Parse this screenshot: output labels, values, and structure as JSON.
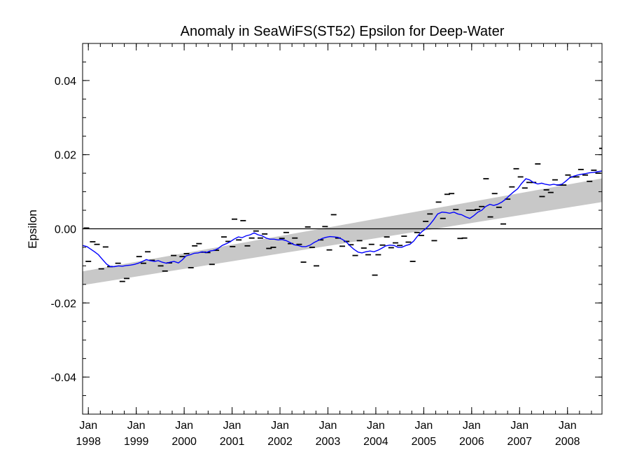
{
  "chart_data": {
    "type": "line",
    "title": "Anomaly in SeaWiFS(ST52) Epsilon for Deep-Water",
    "xlabel": "",
    "ylabel": "Epsilon",
    "xlim": [
      1997.88,
      2008.72
    ],
    "ylim": [
      -0.05,
      0.05
    ],
    "y_ticks": [
      {
        "value": -0.04,
        "label": "-0.04"
      },
      {
        "value": -0.02,
        "label": "-0.02"
      },
      {
        "value": 0.0,
        "label": "0.00"
      },
      {
        "value": 0.02,
        "label": "0.02"
      },
      {
        "value": 0.04,
        "label": "0.04"
      }
    ],
    "x_ticks": [
      {
        "value": 1998,
        "month": "Jan",
        "year": "1998"
      },
      {
        "value": 1999,
        "month": "Jan",
        "year": "1999"
      },
      {
        "value": 2000,
        "month": "Jan",
        "year": "2000"
      },
      {
        "value": 2001,
        "month": "Jan",
        "year": "2001"
      },
      {
        "value": 2002,
        "month": "Jan",
        "year": "2002"
      },
      {
        "value": 2003,
        "month": "Jan",
        "year": "2003"
      },
      {
        "value": 2004,
        "month": "Jan",
        "year": "2004"
      },
      {
        "value": 2005,
        "month": "Jan",
        "year": "2005"
      },
      {
        "value": 2006,
        "month": "Jan",
        "year": "2006"
      },
      {
        "value": 2007,
        "month": "Jan",
        "year": "2007"
      },
      {
        "value": 2008,
        "month": "Jan",
        "year": "2008"
      }
    ],
    "zero_line": 0.0,
    "trend_band": {
      "color": "#c8c8c8",
      "lower": [
        [
          1997.88,
          -0.0152
        ],
        [
          2008.72,
          0.0072
        ]
      ],
      "upper": [
        [
          1997.88,
          -0.0115
        ],
        [
          2008.72,
          0.0136
        ]
      ]
    },
    "smoothed_series": {
      "color": "#0000ff",
      "points": [
        [
          1997.88,
          -0.0045
        ],
        [
          1997.97,
          -0.0048
        ],
        [
          1998.05,
          -0.0055
        ],
        [
          1998.13,
          -0.0062
        ],
        [
          1998.21,
          -0.007
        ],
        [
          1998.29,
          -0.0082
        ],
        [
          1998.38,
          -0.0095
        ],
        [
          1998.46,
          -0.0102
        ],
        [
          1998.54,
          -0.0102
        ],
        [
          1998.63,
          -0.01
        ],
        [
          1998.71,
          -0.0101
        ],
        [
          1998.79,
          -0.0099
        ],
        [
          1998.88,
          -0.0098
        ],
        [
          1998.96,
          -0.0096
        ],
        [
          1999.04,
          -0.0093
        ],
        [
          1999.13,
          -0.0088
        ],
        [
          1999.21,
          -0.0083
        ],
        [
          1999.29,
          -0.0086
        ],
        [
          1999.38,
          -0.0088
        ],
        [
          1999.46,
          -0.0086
        ],
        [
          1999.54,
          -0.009
        ],
        [
          1999.63,
          -0.0093
        ],
        [
          1999.71,
          -0.009
        ],
        [
          1999.79,
          -0.0088
        ],
        [
          1999.88,
          -0.0092
        ],
        [
          1999.96,
          -0.0084
        ],
        [
          2000.04,
          -0.0073
        ],
        [
          2000.13,
          -0.007
        ],
        [
          2000.21,
          -0.0066
        ],
        [
          2000.29,
          -0.0065
        ],
        [
          2000.38,
          -0.0062
        ],
        [
          2000.46,
          -0.0064
        ],
        [
          2000.54,
          -0.006
        ],
        [
          2000.63,
          -0.0058
        ],
        [
          2000.71,
          -0.0053
        ],
        [
          2000.79,
          -0.0045
        ],
        [
          2000.88,
          -0.004
        ],
        [
          2000.96,
          -0.0035
        ],
        [
          2001.04,
          -0.0028
        ],
        [
          2001.13,
          -0.0022
        ],
        [
          2001.21,
          -0.0024
        ],
        [
          2001.29,
          -0.0019
        ],
        [
          2001.38,
          -0.0016
        ],
        [
          2001.46,
          -0.0011
        ],
        [
          2001.54,
          -0.0016
        ],
        [
          2001.63,
          -0.0019
        ],
        [
          2001.71,
          -0.0025
        ],
        [
          2001.79,
          -0.0028
        ],
        [
          2001.88,
          -0.0028
        ],
        [
          2001.96,
          -0.003
        ],
        [
          2002.04,
          -0.0029
        ],
        [
          2002.13,
          -0.0032
        ],
        [
          2002.21,
          -0.0037
        ],
        [
          2002.29,
          -0.0043
        ],
        [
          2002.38,
          -0.0045
        ],
        [
          2002.46,
          -0.0048
        ],
        [
          2002.54,
          -0.0048
        ],
        [
          2002.63,
          -0.0044
        ],
        [
          2002.71,
          -0.0037
        ],
        [
          2002.79,
          -0.0032
        ],
        [
          2002.88,
          -0.0026
        ],
        [
          2002.96,
          -0.0023
        ],
        [
          2003.04,
          -0.0021
        ],
        [
          2003.13,
          -0.0022
        ],
        [
          2003.21,
          -0.0023
        ],
        [
          2003.29,
          -0.0028
        ],
        [
          2003.38,
          -0.0035
        ],
        [
          2003.46,
          -0.0046
        ],
        [
          2003.54,
          -0.0055
        ],
        [
          2003.63,
          -0.0063
        ],
        [
          2003.71,
          -0.0065
        ],
        [
          2003.79,
          -0.0062
        ],
        [
          2003.88,
          -0.006
        ],
        [
          2003.96,
          -0.0062
        ],
        [
          2004.04,
          -0.0058
        ],
        [
          2004.13,
          -0.0052
        ],
        [
          2004.21,
          -0.0046
        ],
        [
          2004.29,
          -0.0044
        ],
        [
          2004.38,
          -0.0045
        ],
        [
          2004.46,
          -0.005
        ],
        [
          2004.54,
          -0.005
        ],
        [
          2004.63,
          -0.0045
        ],
        [
          2004.71,
          -0.0042
        ],
        [
          2004.79,
          -0.0033
        ],
        [
          2004.88,
          -0.0018
        ],
        [
          2004.96,
          -0.0008
        ],
        [
          2005.04,
          0.0
        ],
        [
          2005.13,
          0.0012
        ],
        [
          2005.21,
          0.0025
        ],
        [
          2005.29,
          0.004
        ],
        [
          2005.38,
          0.0045
        ],
        [
          2005.46,
          0.0044
        ],
        [
          2005.54,
          0.0042
        ],
        [
          2005.63,
          0.0045
        ],
        [
          2005.71,
          0.004
        ],
        [
          2005.79,
          0.0038
        ],
        [
          2005.88,
          0.0032
        ],
        [
          2005.96,
          0.0028
        ],
        [
          2006.04,
          0.0035
        ],
        [
          2006.13,
          0.0045
        ],
        [
          2006.21,
          0.005
        ],
        [
          2006.29,
          0.006
        ],
        [
          2006.38,
          0.0066
        ],
        [
          2006.46,
          0.0063
        ],
        [
          2006.54,
          0.0066
        ],
        [
          2006.63,
          0.0072
        ],
        [
          2006.71,
          0.008
        ],
        [
          2006.79,
          0.009
        ],
        [
          2006.88,
          0.01
        ],
        [
          2006.96,
          0.0108
        ],
        [
          2007.04,
          0.0122
        ],
        [
          2007.13,
          0.0135
        ],
        [
          2007.21,
          0.0132
        ],
        [
          2007.29,
          0.0125
        ],
        [
          2007.38,
          0.0121
        ],
        [
          2007.46,
          0.0123
        ],
        [
          2007.54,
          0.012
        ],
        [
          2007.63,
          0.0118
        ],
        [
          2007.71,
          0.012
        ],
        [
          2007.79,
          0.0118
        ],
        [
          2007.88,
          0.012
        ],
        [
          2007.96,
          0.0128
        ],
        [
          2008.04,
          0.0137
        ],
        [
          2008.13,
          0.0142
        ],
        [
          2008.21,
          0.0145
        ],
        [
          2008.29,
          0.0147
        ],
        [
          2008.38,
          0.0149
        ],
        [
          2008.46,
          0.0151
        ],
        [
          2008.54,
          0.0152
        ],
        [
          2008.63,
          0.0154
        ],
        [
          2008.72,
          0.0156
        ]
      ]
    },
    "scatter_series": {
      "marker": "dash",
      "color": "#000000",
      "points": [
        [
          1997.96,
          0.0002
        ],
        [
          1998.0,
          -0.0088
        ],
        [
          1998.09,
          -0.0035
        ],
        [
          1998.18,
          -0.0042
        ],
        [
          1998.27,
          -0.0108
        ],
        [
          1998.36,
          -0.0049
        ],
        [
          1998.45,
          -0.0102
        ],
        [
          1998.62,
          -0.0093
        ],
        [
          1998.71,
          -0.0142
        ],
        [
          1998.8,
          -0.0134
        ],
        [
          1999.06,
          -0.0075
        ],
        [
          1999.15,
          -0.0093
        ],
        [
          1999.24,
          -0.0062
        ],
        [
          1999.33,
          -0.0085
        ],
        [
          1999.51,
          -0.01
        ],
        [
          1999.6,
          -0.0114
        ],
        [
          1999.69,
          -0.0092
        ],
        [
          1999.78,
          -0.0072
        ],
        [
          1999.96,
          -0.0075
        ],
        [
          2000.05,
          -0.0067
        ],
        [
          2000.14,
          -0.0105
        ],
        [
          2000.22,
          -0.0046
        ],
        [
          2000.31,
          -0.004
        ],
        [
          2000.4,
          -0.0063
        ],
        [
          2000.49,
          -0.0064
        ],
        [
          2000.58,
          -0.0096
        ],
        [
          2000.67,
          -0.0058
        ],
        [
          2000.83,
          -0.0022
        ],
        [
          2000.92,
          -0.0034
        ],
        [
          2001.01,
          -0.0048
        ],
        [
          2001.05,
          0.0026
        ],
        [
          2001.14,
          -0.003
        ],
        [
          2001.23,
          0.0022
        ],
        [
          2001.32,
          -0.0046
        ],
        [
          2001.41,
          -0.0025
        ],
        [
          2001.5,
          -0.0006
        ],
        [
          2001.59,
          -0.0025
        ],
        [
          2001.68,
          -0.0014
        ],
        [
          2001.77,
          -0.0053
        ],
        [
          2001.86,
          -0.005
        ],
        [
          2002.04,
          -0.0026
        ],
        [
          2002.13,
          -0.001
        ],
        [
          2002.22,
          -0.004
        ],
        [
          2002.31,
          -0.0025
        ],
        [
          2002.4,
          -0.0042
        ],
        [
          2002.49,
          -0.009
        ],
        [
          2002.58,
          0.0005
        ],
        [
          2002.67,
          -0.005
        ],
        [
          2002.76,
          -0.01
        ],
        [
          2002.85,
          -0.003
        ],
        [
          2002.94,
          0.0006
        ],
        [
          2003.03,
          -0.0057
        ],
        [
          2003.12,
          0.0038
        ],
        [
          2003.21,
          -0.0025
        ],
        [
          2003.3,
          -0.0047
        ],
        [
          2003.39,
          -0.0034
        ],
        [
          2003.48,
          -0.0043
        ],
        [
          2003.57,
          -0.0072
        ],
        [
          2003.66,
          -0.0032
        ],
        [
          2003.75,
          -0.0052
        ],
        [
          2003.84,
          -0.007
        ],
        [
          2003.91,
          -0.0042
        ],
        [
          2003.98,
          -0.0125
        ],
        [
          2004.05,
          -0.007
        ],
        [
          2004.14,
          -0.0044
        ],
        [
          2004.23,
          -0.0022
        ],
        [
          2004.32,
          -0.0051
        ],
        [
          2004.41,
          -0.0038
        ],
        [
          2004.5,
          -0.0045
        ],
        [
          2004.59,
          -0.002
        ],
        [
          2004.68,
          -0.0036
        ],
        [
          2004.77,
          -0.0088
        ],
        [
          2004.86,
          -0.001
        ],
        [
          2004.95,
          -0.0018
        ],
        [
          2005.04,
          0.002
        ],
        [
          2005.13,
          0.004
        ],
        [
          2005.22,
          -0.0032
        ],
        [
          2005.31,
          0.0072
        ],
        [
          2005.4,
          0.0028
        ],
        [
          2005.49,
          0.0093
        ],
        [
          2005.58,
          0.0095
        ],
        [
          2005.67,
          0.0052
        ],
        [
          2005.76,
          -0.0026
        ],
        [
          2005.85,
          -0.0025
        ],
        [
          2005.94,
          0.005
        ],
        [
          2006.03,
          0.005
        ],
        [
          2006.12,
          0.0052
        ],
        [
          2006.21,
          0.006
        ],
        [
          2006.3,
          0.0135
        ],
        [
          2006.39,
          0.0032
        ],
        [
          2006.48,
          0.0095
        ],
        [
          2006.57,
          0.0058
        ],
        [
          2006.66,
          0.0013
        ],
        [
          2006.75,
          0.008
        ],
        [
          2006.84,
          0.0113
        ],
        [
          2006.93,
          0.0162
        ],
        [
          2007.02,
          0.014
        ],
        [
          2007.11,
          0.011
        ],
        [
          2007.2,
          0.0125
        ],
        [
          2007.29,
          0.0125
        ],
        [
          2007.38,
          0.0175
        ],
        [
          2007.47,
          0.0087
        ],
        [
          2007.56,
          0.0105
        ],
        [
          2007.65,
          0.0098
        ],
        [
          2007.74,
          0.0132
        ],
        [
          2007.83,
          0.0118
        ],
        [
          2007.92,
          0.0118
        ],
        [
          2008.01,
          0.0145
        ],
        [
          2008.1,
          0.014
        ],
        [
          2008.19,
          0.014
        ],
        [
          2008.28,
          0.016
        ],
        [
          2008.37,
          0.0145
        ],
        [
          2008.46,
          0.0128
        ],
        [
          2008.55,
          0.0158
        ],
        [
          2008.64,
          0.015
        ],
        [
          2008.72,
          0.0217
        ]
      ]
    }
  }
}
